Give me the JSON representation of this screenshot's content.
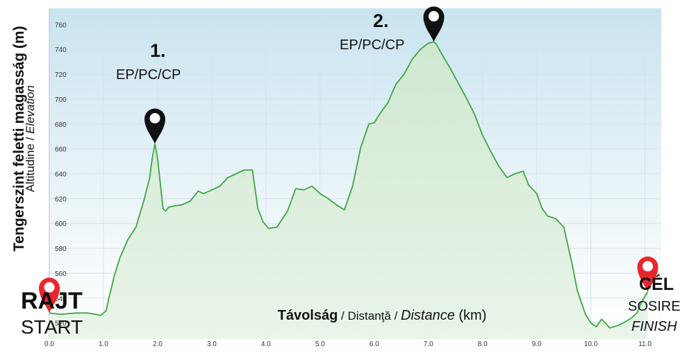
{
  "chart_data": {
    "type": "area",
    "ylabel_main": "Tengerszint feletti magasság (m)",
    "ylabel_sub_plain": "Altitudine / ",
    "ylabel_sub_italic": "Elevation",
    "xlabel_bold": "Távolság",
    "xlabel_sep1": " / ",
    "xlabel_ro": "Distanţă",
    "xlabel_sep2": " / ",
    "xlabel_en": "Distance",
    "xlabel_unit": " (km)",
    "xlim": [
      0,
      11.3
    ],
    "ylim": [
      507,
      773
    ],
    "y_ticks": [
      520,
      540,
      560,
      580,
      600,
      620,
      640,
      660,
      680,
      700,
      720,
      740,
      760
    ],
    "x_ticks": [
      0.0,
      1.0,
      2.0,
      3.0,
      4.0,
      5.0,
      6.0,
      7.0,
      8.0,
      9.0,
      10.0,
      11.0
    ],
    "x_tick_labels": [
      "0.0",
      "1.0",
      "2.0",
      "3.0",
      "4.0",
      "5.0",
      "6.0",
      "7.0",
      "8.0",
      "9.0",
      "10.0",
      "11.0"
    ],
    "grid": true,
    "line_color": "#3aa640",
    "fill_color": "#d6ecd6",
    "x": [
      0.0,
      0.2,
      0.5,
      0.7,
      0.85,
      0.95,
      1.05,
      1.1,
      1.2,
      1.3,
      1.45,
      1.6,
      1.75,
      1.85,
      1.9,
      1.95,
      2.0,
      2.05,
      2.1,
      2.15,
      2.2,
      2.3,
      2.45,
      2.6,
      2.75,
      2.85,
      3.0,
      3.15,
      3.3,
      3.45,
      3.6,
      3.75,
      3.85,
      3.95,
      4.05,
      4.2,
      4.4,
      4.55,
      4.7,
      4.85,
      5.0,
      5.15,
      5.3,
      5.45,
      5.6,
      5.75,
      5.9,
      6.0,
      6.1,
      6.25,
      6.4,
      6.55,
      6.7,
      6.85,
      7.0,
      7.1,
      7.15,
      7.25,
      7.4,
      7.55,
      7.7,
      7.85,
      8.0,
      8.15,
      8.3,
      8.45,
      8.6,
      8.75,
      8.85,
      9.0,
      9.1,
      9.2,
      9.35,
      9.5,
      9.65,
      9.75,
      9.9,
      10.0,
      10.1,
      10.2,
      10.35,
      10.5,
      10.6,
      10.75,
      10.85,
      10.95,
      11.05
    ],
    "y": [
      528,
      527,
      528,
      528,
      527,
      526,
      530,
      540,
      558,
      572,
      587,
      597,
      619,
      636,
      652,
      664,
      652,
      632,
      612,
      610,
      613,
      614,
      615,
      618,
      626,
      624,
      627,
      630,
      637,
      640,
      643,
      643,
      612,
      601,
      596,
      597,
      610,
      628,
      627,
      630,
      624,
      620,
      615,
      611,
      630,
      661,
      680,
      681,
      688,
      697,
      712,
      720,
      732,
      740,
      745,
      746,
      744,
      736,
      725,
      713,
      701,
      688,
      671,
      658,
      646,
      637,
      640,
      642,
      631,
      624,
      612,
      606,
      604,
      597,
      568,
      546,
      527,
      520,
      517,
      523,
      516,
      518,
      520,
      524,
      528,
      538,
      545
    ],
    "markers": [
      {
        "id": "start",
        "x": 0.0,
        "y": 528,
        "color": "#e8262b",
        "title": "RAJT",
        "subtitle": "START"
      },
      {
        "id": "cp1",
        "x": 1.95,
        "y": 664,
        "color": "#111111",
        "number": "1.",
        "label": "EP/PC/CP"
      },
      {
        "id": "cp2",
        "x": 7.1,
        "y": 746,
        "color": "#111111",
        "number": "2.",
        "label": "EP/PC/CP"
      },
      {
        "id": "finish",
        "x": 11.05,
        "y": 545,
        "color": "#e8262b",
        "title": "CÉL",
        "subtitle": "SOSIRE",
        "subtitle2": "FINISH"
      }
    ]
  }
}
